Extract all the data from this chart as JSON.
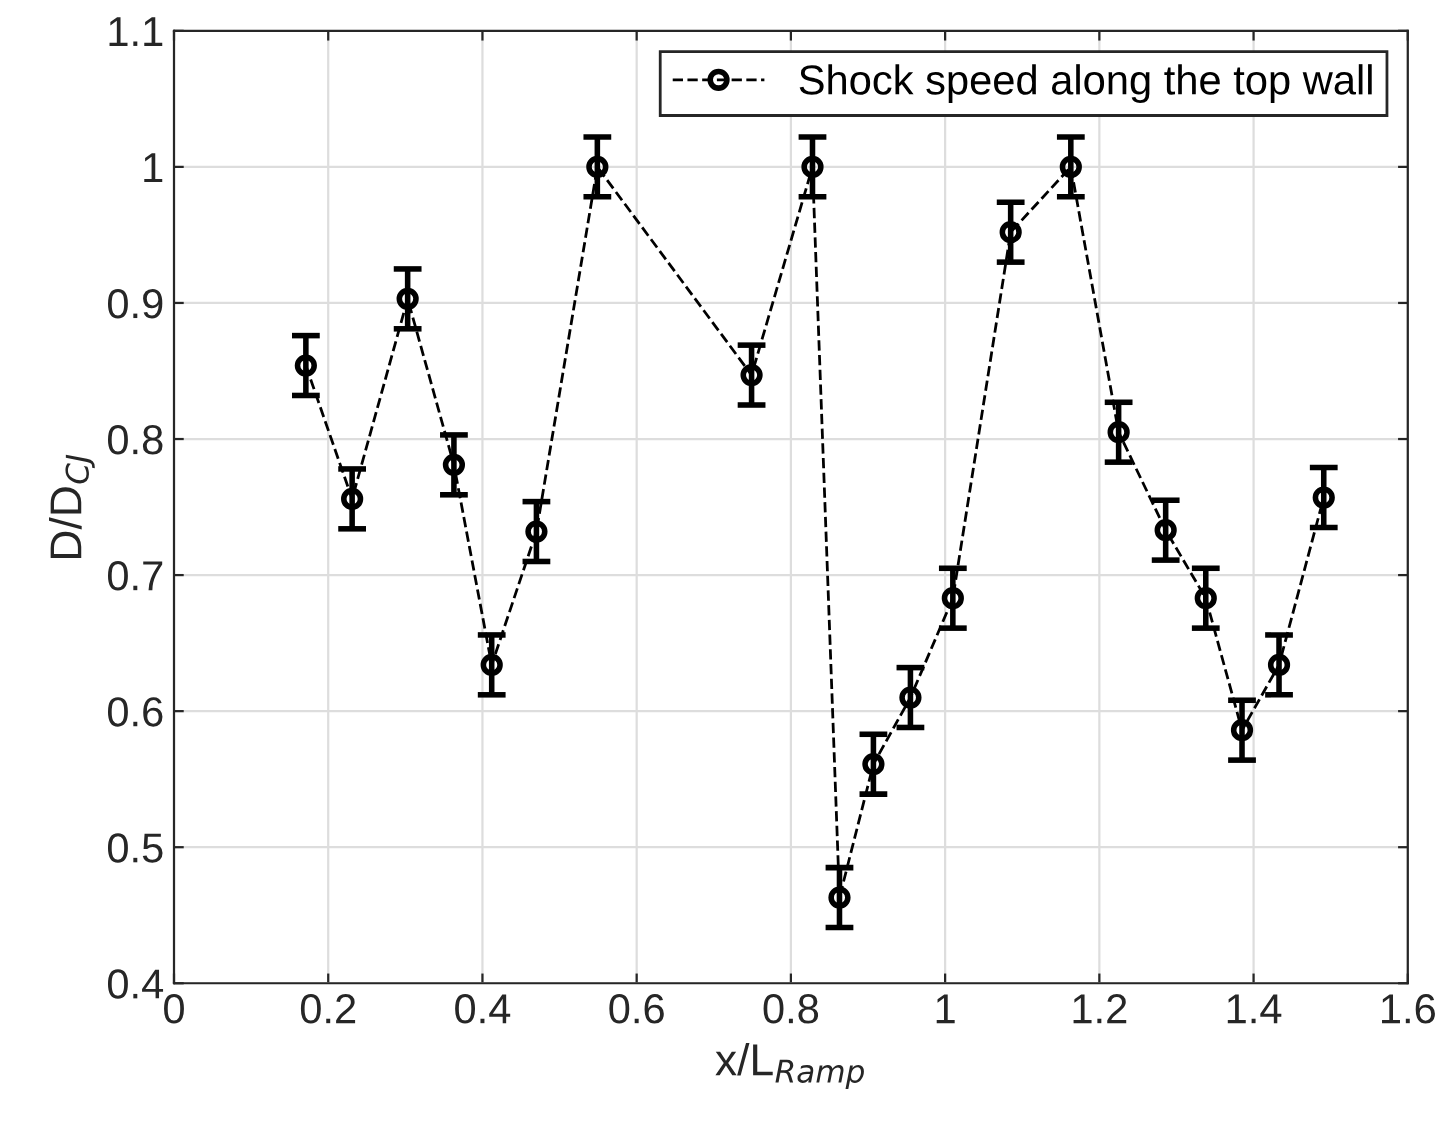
{
  "chart_data": {
    "type": "line",
    "xlabel": "x/L$_{Ramp}$",
    "ylabel": "D/D$_{CJ}$",
    "x": [
      0.171,
      0.231,
      0.303,
      0.363,
      0.412,
      0.47,
      0.549,
      0.749,
      0.828,
      0.863,
      0.907,
      0.955,
      1.01,
      1.085,
      1.163,
      1.225,
      1.286,
      1.338,
      1.385,
      1.433,
      1.491
    ],
    "series": [
      {
        "name": "Shock speed along the top wall",
        "color": "#000000",
        "values": [
          0.854,
          0.756,
          0.903,
          0.781,
          0.634,
          0.732,
          1.0,
          0.847,
          1.0,
          0.463,
          0.561,
          0.61,
          0.683,
          0.952,
          1.0,
          0.805,
          0.733,
          0.683,
          0.586,
          0.634,
          0.757
        ],
        "errors": [
          0.022,
          0.022,
          0.022,
          0.022,
          0.022,
          0.022,
          0.022,
          0.022,
          0.022,
          0.022,
          0.022,
          0.022,
          0.022,
          0.022,
          0.022,
          0.022,
          0.022,
          0.022,
          0.022,
          0.022,
          0.022
        ]
      }
    ],
    "xlim": [
      0,
      1.6
    ],
    "xticks": [
      0,
      {
        "value": 0.2,
        "label": "0.2"
      },
      {
        "value": 0.4,
        "label": "0.4"
      },
      {
        "value": 0.6,
        "label": "0.6"
      },
      {
        "value": 0.8,
        "label": "0.8"
      },
      1,
      {
        "value": 1.2,
        "label": "1.2"
      },
      {
        "value": 1.4,
        "label": "1.4"
      },
      {
        "value": 1.6,
        "label": "1.6"
      }
    ],
    "ylim": [
      0.4,
      1.1
    ],
    "yticks": [
      {
        "value": 0.4,
        "label": "0.4"
      },
      {
        "value": 0.5,
        "label": "0.5"
      },
      {
        "value": 0.6,
        "label": "0.6"
      },
      {
        "value": 0.7,
        "label": "0.7"
      },
      {
        "value": 0.8,
        "label": "0.8"
      },
      {
        "value": 0.9,
        "label": "0.9"
      },
      1,
      {
        "value": 1.1,
        "label": "1.1"
      }
    ],
    "grid": true,
    "legend": "top right",
    "marker": "circle",
    "line_style": "dashed"
  }
}
